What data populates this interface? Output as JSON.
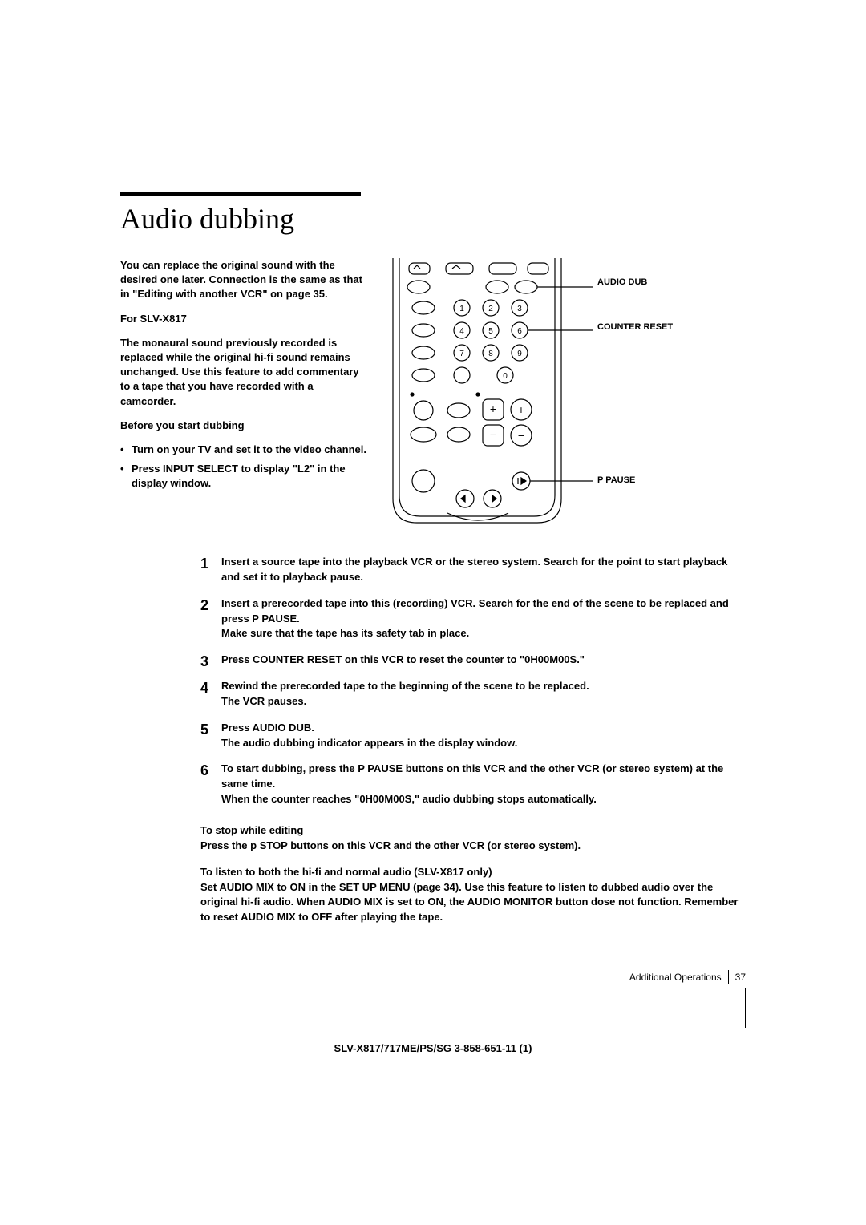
{
  "title": "Audio dubbing",
  "intro": "You can replace the original sound with the desired one later. Connection is the same as that in \"Editing with another VCR\" on page 35.",
  "for_model_head": "For SLV-X817",
  "for_model_body": "The monaural sound previously recorded is replaced while the original hi-fi sound remains unchanged. Use this feature to add commentary to a tape that you have recorded with a camcorder.",
  "before_head": "Before you start dubbing",
  "before_bullets": [
    "Turn on your TV and set it to the video channel.",
    "Press INPUT SELECT to display \"L2\" in the display window."
  ],
  "callouts": {
    "audio_dub": "AUDIO DUB",
    "counter_reset": "COUNTER RESET",
    "pause": "P PAUSE"
  },
  "steps": [
    "Insert a source tape into the playback VCR or the stereo system. Search for the point to start playback and set it to playback pause.",
    "Insert a prerecorded tape into this (recording) VCR. Search for the end of the scene to be replaced and press P PAUSE.\nMake sure that the tape has its safety tab in place.",
    "Press COUNTER RESET on this VCR to reset the counter to \"0H00M00S.\"",
    "Rewind the prerecorded tape to the beginning of the scene to be replaced.\nThe VCR pauses.",
    "Press AUDIO DUB.\nThe audio dubbing indicator appears in the display window.",
    "To start dubbing, press the P PAUSE buttons on this VCR and the other VCR (or stereo system) at the same time.\nWhen the counter reaches \"0H00M00S,\" audio dubbing stops automatically."
  ],
  "stop_head": "To stop while editing",
  "stop_body": "Press the p STOP buttons on this VCR and the other VCR (or stereo system).",
  "listen_head": "To listen to both the hi-fi and normal audio (SLV-X817 only)",
  "listen_body": "Set AUDIO MIX to ON in the SET UP MENU (page 34). Use this feature to listen to dubbed audio over the original hi-fi audio. When AUDIO MIX is set to ON, the AUDIO MONITOR button dose not function. Remember to reset AUDIO MIX to OFF after playing the tape.",
  "footer_section": "Additional Operations",
  "footer_page": "37",
  "bottom_code": "SLV-X817/717ME/PS/SG    3-858-651-11 (1)",
  "colors": {
    "text": "#000000",
    "bg": "#ffffff"
  },
  "remote": {
    "outline_stroke": "#000000",
    "stroke_width": 1.2
  }
}
